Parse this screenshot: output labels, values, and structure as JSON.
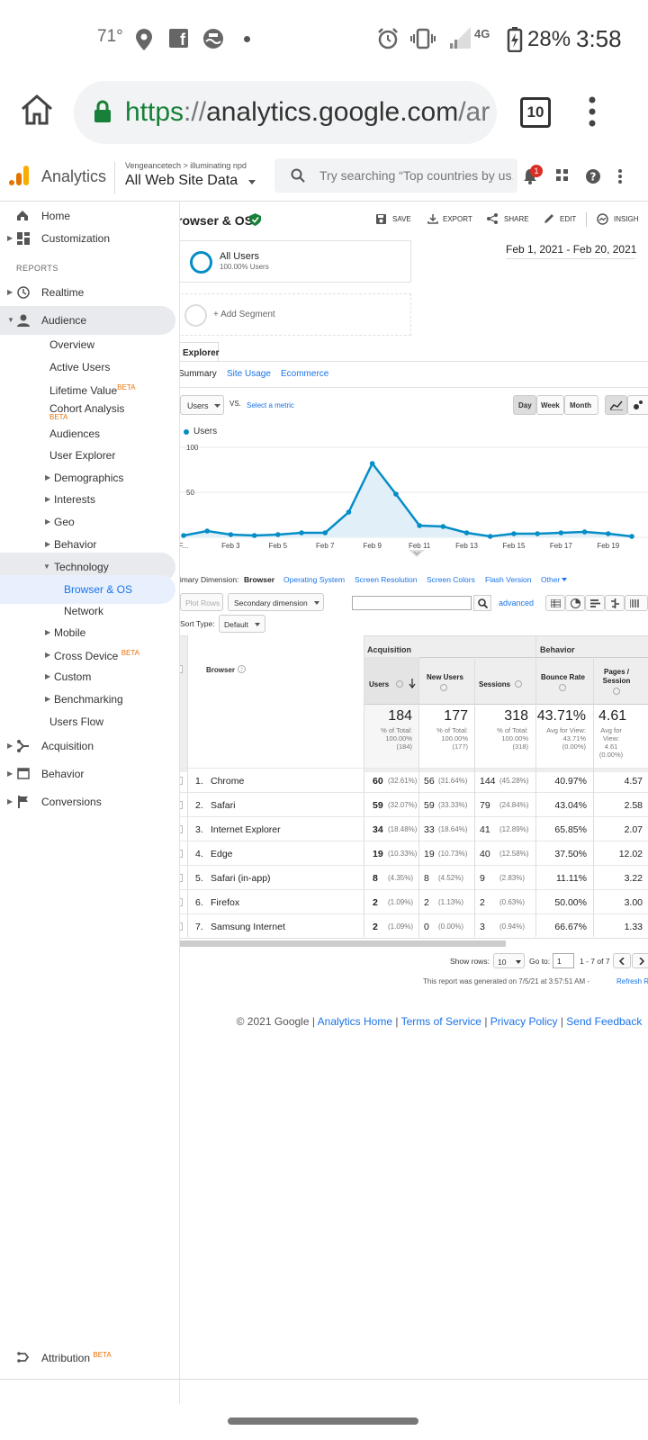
{
  "status_bar": {
    "temperature": "71°",
    "network": "4G",
    "battery": "28%",
    "time": "3:58"
  },
  "browser": {
    "url_scheme": "https",
    "url_sep": "://",
    "url_host": "analytics.google.com",
    "url_rest": "/ar",
    "tab_count": "10"
  },
  "header": {
    "product": "Analytics",
    "breadcrumb": "Vengeancetech > illuminating npd",
    "property": "All Web Site Data",
    "search_placeholder": "Try searching “Top countries by us...",
    "notification_count": "1"
  },
  "sidebar": {
    "home": "Home",
    "customization": "Customization",
    "reports_header": "REPORTS",
    "realtime": "Realtime",
    "audience": "Audience",
    "audience_items": {
      "overview": "Overview",
      "active_users": "Active Users",
      "lifetime_value": "Lifetime Value",
      "cohort_analysis": "Cohort Analysis",
      "audiences": "Audiences",
      "user_explorer": "User Explorer",
      "demographics": "Demographics",
      "interests": "Interests",
      "geo": "Geo",
      "behavior": "Behavior",
      "technology": "Technology",
      "browser_os": "Browser & OS",
      "network": "Network",
      "mobile": "Mobile",
      "cross_device": "Cross Device",
      "custom": "Custom",
      "benchmarking": "Benchmarking",
      "users_flow": "Users Flow"
    },
    "beta": "BETA",
    "acquisition": "Acquisition",
    "behavior": "Behavior",
    "conversions": "Conversions",
    "attribution": "Attribution"
  },
  "report": {
    "title": "rowser & OS",
    "actions": {
      "save": "SAVE",
      "export": "EXPORT",
      "share": "SHARE",
      "edit": "EDIT",
      "insights": "INSIGH"
    },
    "date_range": "Feb 1, 2021 - Feb 20, 2021",
    "segment_name": "All Users",
    "segment_pct": "100.00% Users",
    "add_segment": "+ Add Segment",
    "explorer_tab": "Explorer",
    "subtabs": {
      "summary": "Summary",
      "site_usage": "Site Usage",
      "ecommerce": "Ecommerce"
    },
    "metric_select": "Users",
    "vs": "VS.",
    "select_metric": "Select a metric",
    "granularity": {
      "day": "Day",
      "week": "Week",
      "month": "Month"
    },
    "legend_users": "Users",
    "primary_dimension_label": "rimary Dimension:",
    "dimensions": {
      "browser": "Browser",
      "os": "Operating System",
      "resolution": "Screen Resolution",
      "colors": "Screen Colors",
      "flash": "Flash Version",
      "other": "Other"
    },
    "plot_rows": "Plot Rows",
    "secondary_dimension": "Secondary dimension",
    "advanced": "advanced",
    "sort_type_label": "Sort Type:",
    "sort_type_value": "Default"
  },
  "chart_data": {
    "type": "area",
    "title": "",
    "series": [
      {
        "name": "Users",
        "values": [
          2,
          7,
          3,
          2,
          3,
          5,
          5,
          28,
          82,
          48,
          13,
          12,
          5,
          1,
          4,
          4,
          5,
          6,
          4,
          1
        ]
      }
    ],
    "x": [
      "F...",
      "",
      "Feb 3",
      "",
      "Feb 5",
      "",
      "Feb 7",
      "",
      "Feb 9",
      "",
      "Feb 11",
      "",
      "Feb 13",
      "",
      "Feb 15",
      "",
      "Feb 17",
      "",
      "Feb 19",
      ""
    ],
    "ytick_labels": [
      "50",
      "100"
    ],
    "ylim": [
      0,
      100
    ],
    "grid": true,
    "legend": "top-left"
  },
  "table": {
    "group_acquisition": "Acquisition",
    "group_behavior": "Behavior",
    "col_browser": "Browser",
    "col_users": "Users",
    "col_new_users": "New Users",
    "col_sessions": "Sessions",
    "col_bounce": "Bounce Rate",
    "col_pages": "Pages / Session",
    "totals": {
      "users": "184",
      "users_sub": "% of Total: 100.00% (184)",
      "new_users": "177",
      "new_users_sub": "% of Total: 100.00% (177)",
      "sessions": "318",
      "sessions_sub": "% of Total: 100.00% (318)",
      "bounce": "43.71%",
      "bounce_sub": "Avg for View: 43.71% (0.00%)",
      "pages": "4.61",
      "pages_sub": "Avg for View: 4.61 (0.00%)"
    },
    "rows": [
      {
        "idx": "1.",
        "browser": "Chrome",
        "users": "60",
        "users_pct": "(32.61%)",
        "new": "56",
        "new_pct": "(31.64%)",
        "sessions": "144",
        "sessions_pct": "(45.28%)",
        "bounce": "40.97%",
        "pages": "4.57"
      },
      {
        "idx": "2.",
        "browser": "Safari",
        "users": "59",
        "users_pct": "(32.07%)",
        "new": "59",
        "new_pct": "(33.33%)",
        "sessions": "79",
        "sessions_pct": "(24.84%)",
        "bounce": "43.04%",
        "pages": "2.58"
      },
      {
        "idx": "3.",
        "browser": "Internet Explorer",
        "users": "34",
        "users_pct": "(18.48%)",
        "new": "33",
        "new_pct": "(18.64%)",
        "sessions": "41",
        "sessions_pct": "(12.89%)",
        "bounce": "65.85%",
        "pages": "2.07"
      },
      {
        "idx": "4.",
        "browser": "Edge",
        "users": "19",
        "users_pct": "(10.33%)",
        "new": "19",
        "new_pct": "(10.73%)",
        "sessions": "40",
        "sessions_pct": "(12.58%)",
        "bounce": "37.50%",
        "pages": "12.02"
      },
      {
        "idx": "5.",
        "browser": "Safari (in-app)",
        "users": "8",
        "users_pct": "(4.35%)",
        "new": "8",
        "new_pct": "(4.52%)",
        "sessions": "9",
        "sessions_pct": "(2.83%)",
        "bounce": "11.11%",
        "pages": "3.22"
      },
      {
        "idx": "6.",
        "browser": "Firefox",
        "users": "2",
        "users_pct": "(1.09%)",
        "new": "2",
        "new_pct": "(1.13%)",
        "sessions": "2",
        "sessions_pct": "(0.63%)",
        "bounce": "50.00%",
        "pages": "3.00"
      },
      {
        "idx": "7.",
        "browser": "Samsung Internet",
        "users": "2",
        "users_pct": "(1.09%)",
        "new": "0",
        "new_pct": "(0.00%)",
        "sessions": "3",
        "sessions_pct": "(0.94%)",
        "bounce": "66.67%",
        "pages": "1.33"
      }
    ]
  },
  "pagination": {
    "show_rows_label": "Show rows:",
    "show_rows_value": "10",
    "goto_label": "Go to:",
    "goto_value": "1",
    "range": "1 - 7 of 7"
  },
  "generated_note": "This report was generated on 7/5/21 at 3:57:51 AM -",
  "refresh": "Refresh Re",
  "footer": {
    "copyright": "© 2021 Google |",
    "analytics_home": "Analytics Home",
    "terms": "Terms of Service",
    "privacy": "Privacy Policy",
    "feedback": "Send Feedback",
    "sep": "|"
  },
  "colors": {
    "accent": "#1a73e8",
    "chart_line": "#058dc7",
    "chart_fill": "#e1f0f8",
    "logo_orange": "#f9ab00",
    "logo_dark": "#e37400"
  }
}
